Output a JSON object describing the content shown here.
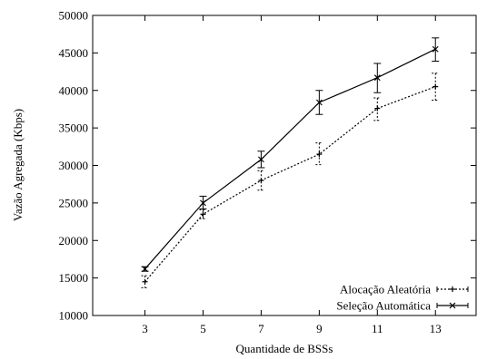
{
  "chart_data": {
    "type": "line",
    "title": "",
    "xlabel": "Quantidade de  BSSs",
    "ylabel": "Vazão Agregada (Kbps)",
    "x": [
      3,
      5,
      7,
      9,
      11,
      13
    ],
    "xlim": [
      1.2,
      14.4
    ],
    "ylim": [
      10000,
      50000
    ],
    "xticks": [
      3,
      5,
      7,
      9,
      11,
      13
    ],
    "yticks": [
      10000,
      15000,
      20000,
      25000,
      30000,
      35000,
      40000,
      45000,
      50000
    ],
    "grid": false,
    "legend_position": "bottom-right",
    "series": [
      {
        "name": "Alocação Aleatória",
        "style": "dotted",
        "marker": "plus",
        "color": "#000000",
        "values": [
          14500,
          23500,
          28000,
          31500,
          37600,
          40500
        ],
        "error_low": [
          13700,
          22900,
          26700,
          30100,
          36000,
          38700
        ],
        "error_high": [
          15300,
          24100,
          29300,
          33000,
          39000,
          42300
        ]
      },
      {
        "name": "Seleção Automática",
        "style": "solid",
        "marker": "x",
        "color": "#000000",
        "values": [
          16200,
          25000,
          30800,
          38400,
          41700,
          45500
        ],
        "error_low": [
          15900,
          24200,
          29700,
          36800,
          39700,
          43900
        ],
        "error_high": [
          16500,
          25900,
          31900,
          40000,
          43600,
          47000
        ]
      }
    ]
  }
}
